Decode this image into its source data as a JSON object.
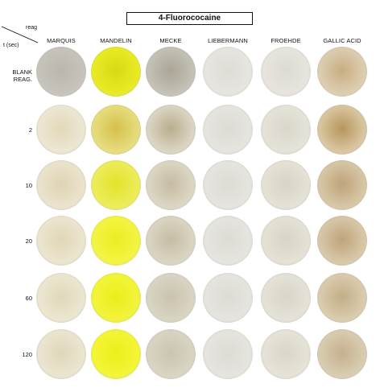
{
  "title": "4-Fluorococaine",
  "corner": {
    "top": "reag",
    "bottom": "t (sec)"
  },
  "reagents": [
    "MARQUIS",
    "MANDELIN",
    "MECKE",
    "LIEBERMANN",
    "FROEHDE",
    "GALLIC ACID"
  ],
  "rows": [
    {
      "label": "BLANK",
      "label2": "REAG."
    },
    {
      "label": "2",
      "label2": ""
    },
    {
      "label": "10",
      "label2": ""
    },
    {
      "label": "20",
      "label2": ""
    },
    {
      "label": "60",
      "label2": ""
    },
    {
      "label": "120",
      "label2": ""
    }
  ],
  "colors": {
    "rim": "#e3e2dc",
    "grid": [
      [
        [
          "#c6c3ba",
          "#bab6ad"
        ],
        [
          "#e8ea23",
          "#d6da16"
        ],
        [
          "#c3c0b5",
          "#aaa596"
        ],
        [
          "#e6e5df",
          "#dddcd5"
        ],
        [
          "#e6e4dc",
          "#dcdad1"
        ],
        [
          "#dccdb0",
          "#c8ad80"
        ]
      ],
      [
        [
          "#ece6d2",
          "#e2d8ba"
        ],
        [
          "#e6dc7c",
          "#d5c04a"
        ],
        [
          "#dad4c2",
          "#b9ad8e"
        ],
        [
          "#e5e4de",
          "#dcdbd4"
        ],
        [
          "#e5e2d8",
          "#d9d6ca"
        ],
        [
          "#d8c5a0",
          "#b7955c"
        ]
      ],
      [
        [
          "#eae3cc",
          "#dfd3b2"
        ],
        [
          "#ecec5a",
          "#e3e22c"
        ],
        [
          "#dbd6c3",
          "#c5bba0"
        ],
        [
          "#e5e4de",
          "#dcdbd4"
        ],
        [
          "#e4e1d5",
          "#d8d4c6"
        ],
        [
          "#d6c6a4",
          "#bea37a"
        ]
      ],
      [
        [
          "#ebe5cf",
          "#e1d6b6"
        ],
        [
          "#f3f442",
          "#eced22"
        ],
        [
          "#d9d4c1",
          "#c6bda4"
        ],
        [
          "#e5e4de",
          "#dcdbd4"
        ],
        [
          "#e4e1d5",
          "#d8d4c6"
        ],
        [
          "#d7c7a6",
          "#bea47c"
        ]
      ],
      [
        [
          "#ebe6d0",
          "#e1d8b9"
        ],
        [
          "#f2f43a",
          "#ebed1e"
        ],
        [
          "#d8d4c3",
          "#cac3ad"
        ],
        [
          "#e5e4de",
          "#dcdbd4"
        ],
        [
          "#e4e1d6",
          "#d9d5c8"
        ],
        [
          "#d9cbad",
          "#c4ad88"
        ]
      ],
      [
        [
          "#eae5d0",
          "#e0d7ba"
        ],
        [
          "#f3f536",
          "#ecee1c"
        ],
        [
          "#d8d4c3",
          "#cbc5b0"
        ],
        [
          "#e5e4de",
          "#dcdbd4"
        ],
        [
          "#e5e2d7",
          "#dad6c9"
        ],
        [
          "#d8ccb0",
          "#c4b08e"
        ]
      ]
    ]
  }
}
